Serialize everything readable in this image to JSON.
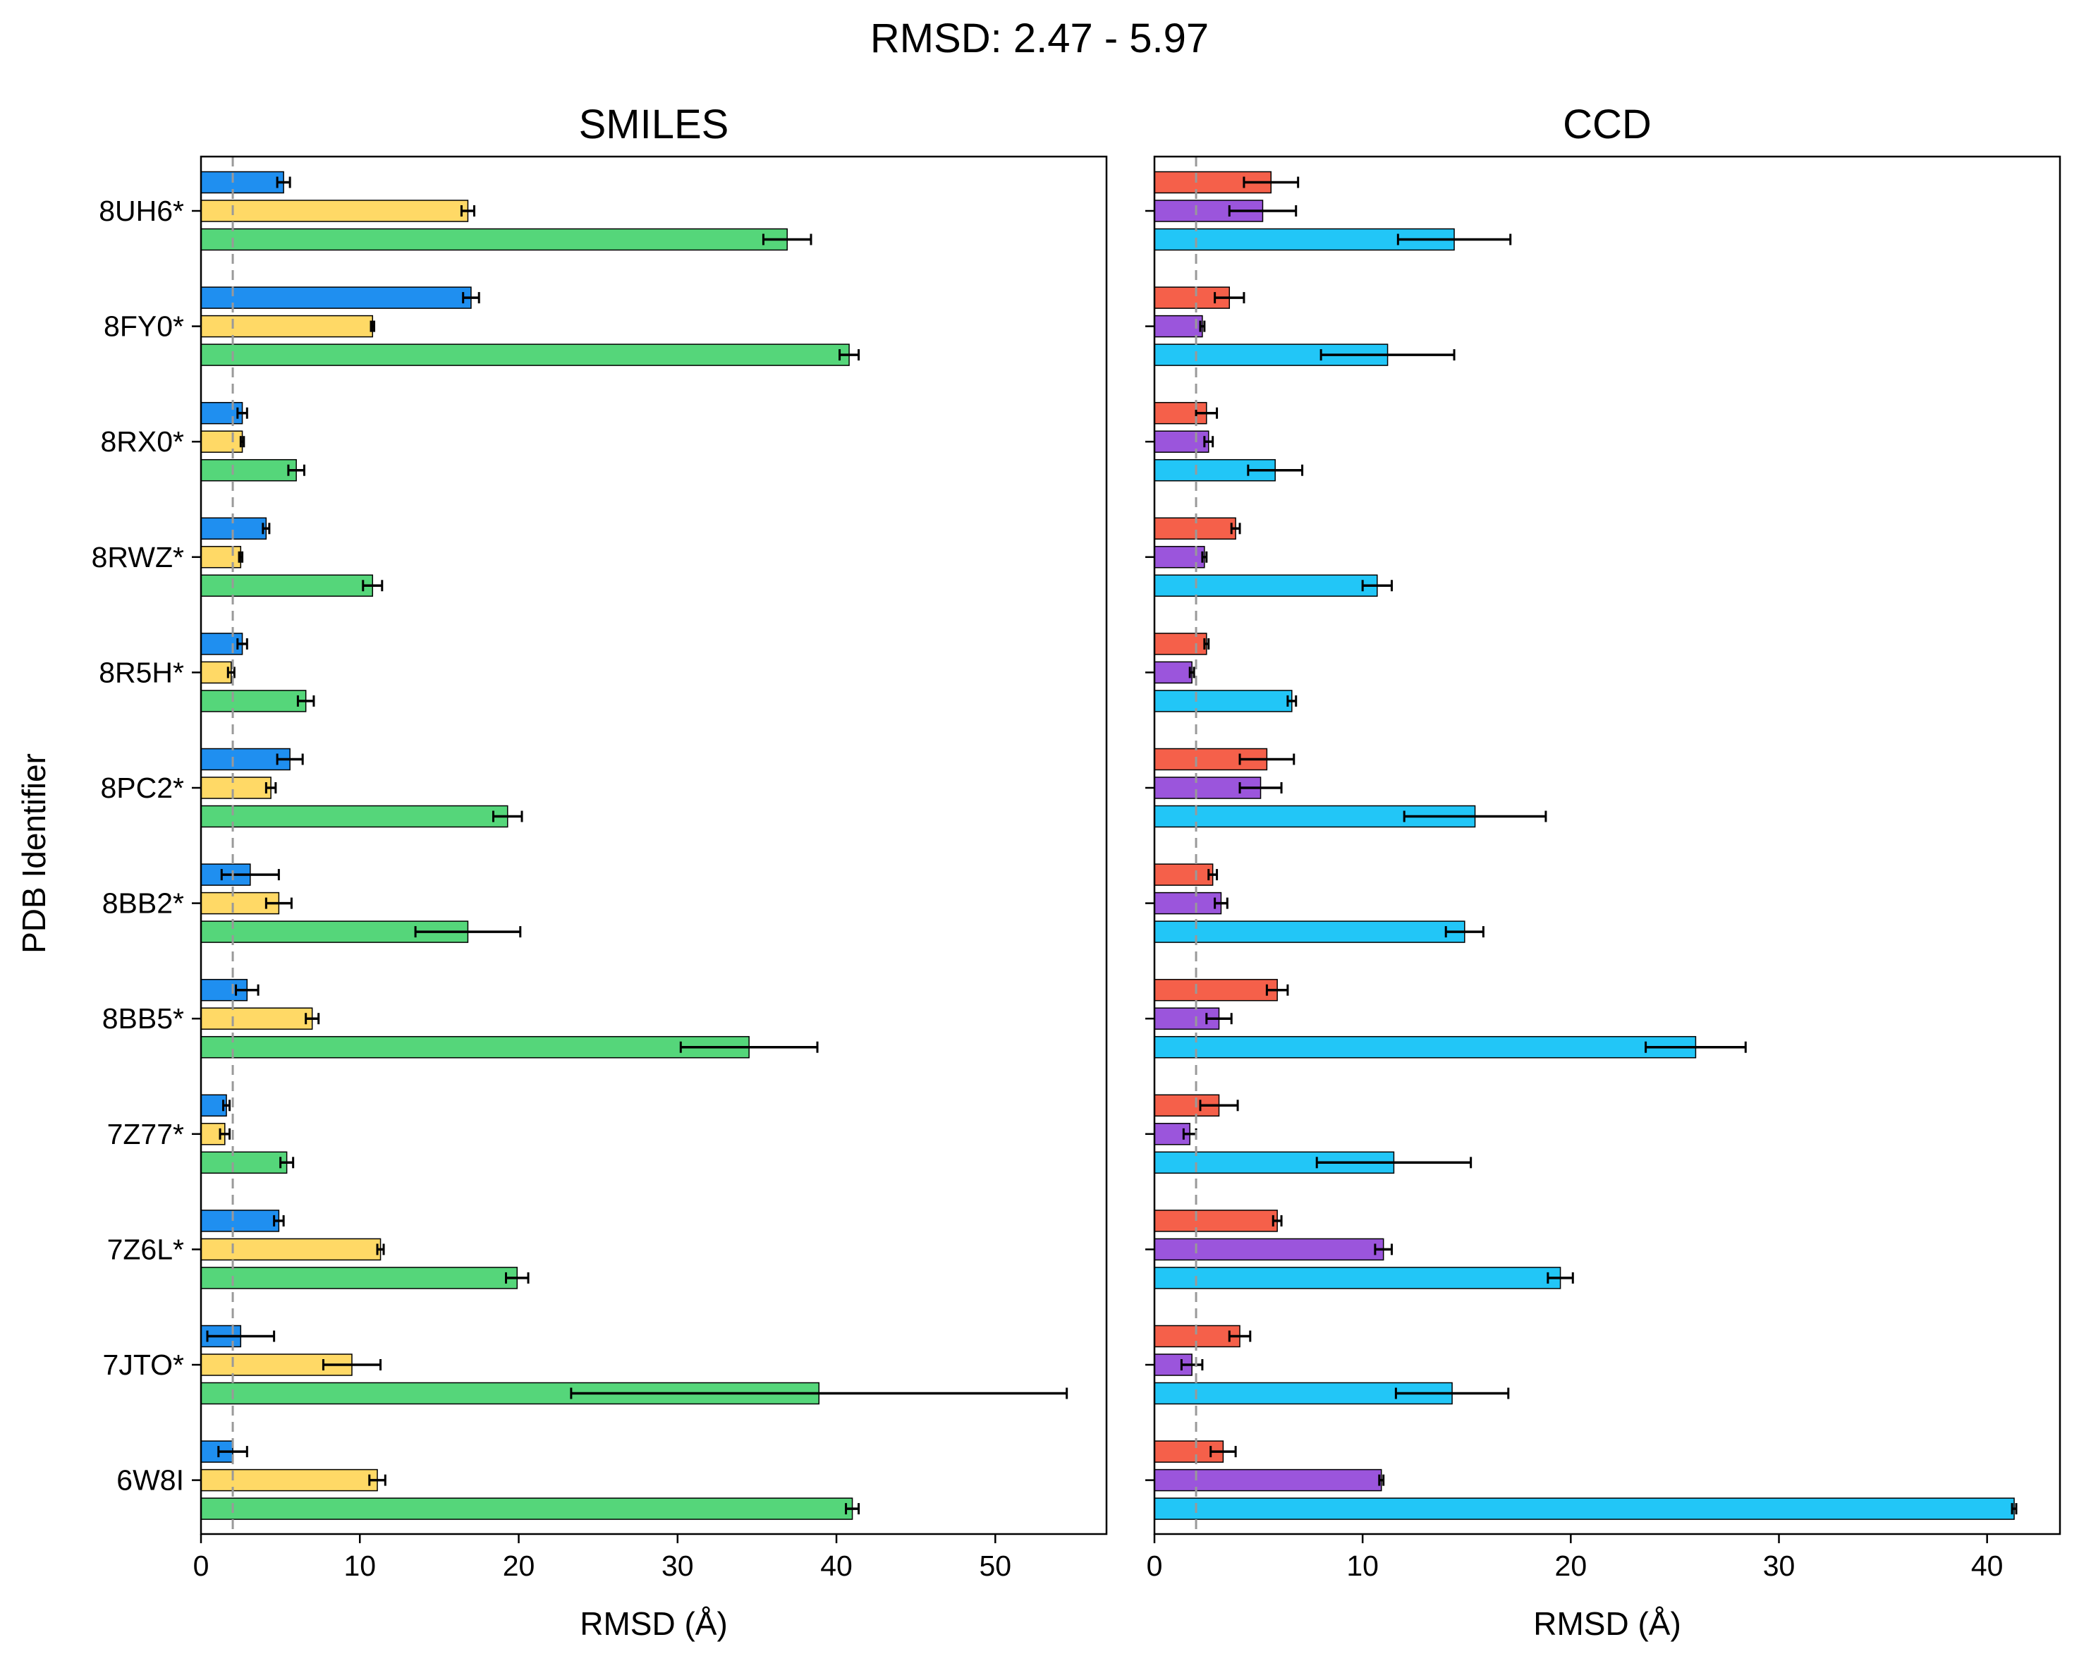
{
  "suptitle": "RMSD: 2.47 - 5.97",
  "ylabel": "PDB Identifier",
  "categories": [
    "8UH6*",
    "8FY0*",
    "8RX0*",
    "8RWZ*",
    "8R5H*",
    "8PC2*",
    "8BB2*",
    "8BB5*",
    "7Z77*",
    "7Z6L*",
    "7JTO*",
    "6W8I"
  ],
  "chart_data": [
    {
      "type": "bar",
      "orientation": "horizontal",
      "title": "SMILES",
      "xlabel": "RMSD (Å)",
      "xlim": [
        0,
        57
      ],
      "xticks": [
        0,
        10,
        20,
        30,
        40,
        50
      ],
      "threshold": 2,
      "grid": false,
      "series": [
        {
          "color": "#1f8ff0",
          "values": [
            5.2,
            17.0,
            2.6,
            4.1,
            2.6,
            5.6,
            3.1,
            2.9,
            1.6,
            4.9,
            2.5,
            2.0
          ],
          "errors": [
            0.4,
            0.5,
            0.3,
            0.2,
            0.3,
            0.8,
            1.8,
            0.7,
            0.2,
            0.3,
            2.1,
            0.9
          ]
        },
        {
          "color": "#ffd966",
          "values": [
            16.8,
            10.8,
            2.6,
            2.5,
            1.9,
            4.4,
            4.9,
            7.0,
            1.5,
            11.3,
            9.5,
            11.1
          ],
          "errors": [
            0.4,
            0.1,
            0.1,
            0.1,
            0.2,
            0.3,
            0.8,
            0.4,
            0.3,
            0.2,
            1.8,
            0.5
          ]
        },
        {
          "color": "#55d67a",
          "values": [
            36.9,
            40.8,
            6.0,
            10.8,
            6.6,
            19.3,
            16.8,
            34.5,
            5.4,
            19.9,
            38.9,
            41.0
          ],
          "errors": [
            1.5,
            0.6,
            0.5,
            0.6,
            0.5,
            0.9,
            3.3,
            4.3,
            0.4,
            0.7,
            15.6,
            0.4
          ]
        }
      ]
    },
    {
      "type": "bar",
      "orientation": "horizontal",
      "title": "CCD",
      "xlabel": "RMSD (Å)",
      "xlim": [
        0,
        43.5
      ],
      "xticks": [
        0,
        10,
        20,
        30,
        40
      ],
      "threshold": 2,
      "grid": false,
      "series": [
        {
          "color": "#f5604a",
          "values": [
            5.6,
            3.6,
            2.5,
            3.9,
            2.5,
            5.4,
            2.8,
            5.9,
            3.1,
            5.9,
            4.1,
            3.3
          ],
          "errors": [
            1.3,
            0.7,
            0.5,
            0.2,
            0.1,
            1.3,
            0.2,
            0.5,
            0.9,
            0.2,
            0.5,
            0.6
          ]
        },
        {
          "color": "#9b55dc",
          "values": [
            5.2,
            2.3,
            2.6,
            2.4,
            1.8,
            5.1,
            3.2,
            3.1,
            1.7,
            11.0,
            1.8,
            10.9
          ],
          "errors": [
            1.6,
            0.1,
            0.2,
            0.1,
            0.1,
            1.0,
            0.3,
            0.6,
            0.3,
            0.4,
            0.5,
            0.1
          ]
        },
        {
          "color": "#22c6f7",
          "values": [
            14.4,
            11.2,
            5.8,
            10.7,
            6.6,
            15.4,
            14.9,
            26.0,
            11.5,
            19.5,
            14.3,
            41.3
          ],
          "errors": [
            2.7,
            3.2,
            1.3,
            0.7,
            0.2,
            3.4,
            0.9,
            2.4,
            3.7,
            0.6,
            2.7,
            0.1
          ]
        }
      ]
    }
  ]
}
